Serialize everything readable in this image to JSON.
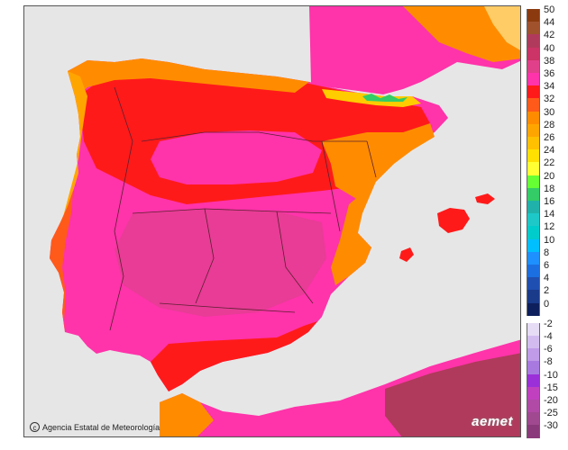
{
  "map": {
    "credit": "Agencia Estatal de Meteorología",
    "logo_text": "aemet",
    "colors": {
      "sea": "#e6e6e6",
      "land_hot": "#ff3399",
      "land_warm": "#ff1a1a",
      "land_mild": "#ff8000",
      "land_cool": "#ffcc00",
      "africa": "#c0392b",
      "border": "#5a2030"
    }
  },
  "legend": {
    "positive": [
      {
        "label": "50",
        "color": "#8b3a0f"
      },
      {
        "label": "44",
        "color": "#a0522d"
      },
      {
        "label": "42",
        "color": "#b03a5b"
      },
      {
        "label": "40",
        "color": "#cc3366"
      },
      {
        "label": "38",
        "color": "#e0408a"
      },
      {
        "label": "36",
        "color": "#ff33aa"
      },
      {
        "label": "34",
        "color": "#ff1a1a"
      },
      {
        "label": "32",
        "color": "#ff5a1a"
      },
      {
        "label": "30",
        "color": "#ff8c00"
      },
      {
        "label": "28",
        "color": "#ffa500"
      },
      {
        "label": "26",
        "color": "#ffc000"
      },
      {
        "label": "24",
        "color": "#ffe000"
      },
      {
        "label": "22",
        "color": "#ffff33"
      },
      {
        "label": "20",
        "color": "#66ff33"
      },
      {
        "label": "18",
        "color": "#33cc66"
      },
      {
        "label": "16",
        "color": "#20b2aa"
      },
      {
        "label": "14",
        "color": "#1ec8c8"
      },
      {
        "label": "12",
        "color": "#00cccc"
      },
      {
        "label": "10",
        "color": "#00bfff"
      },
      {
        "label": "8",
        "color": "#1e90ff"
      },
      {
        "label": "6",
        "color": "#1c6fe0"
      },
      {
        "label": "4",
        "color": "#1f4fb0"
      },
      {
        "label": "2",
        "color": "#1a3a8a"
      },
      {
        "label": "0",
        "color": "#0d1f5c"
      }
    ],
    "negative": [
      {
        "label": "-2",
        "color": "#e6dcf5"
      },
      {
        "label": "-4",
        "color": "#d2bcef"
      },
      {
        "label": "-6",
        "color": "#bf9be8"
      },
      {
        "label": "-8",
        "color": "#a87ae0"
      },
      {
        "label": "-10",
        "color": "#9b30d9"
      },
      {
        "label": "-15",
        "color": "#c040c0"
      },
      {
        "label": "-20",
        "color": "#b04aa6"
      },
      {
        "label": "-25",
        "color": "#a04890"
      },
      {
        "label": "-30",
        "color": "#8a3a7a"
      }
    ]
  }
}
